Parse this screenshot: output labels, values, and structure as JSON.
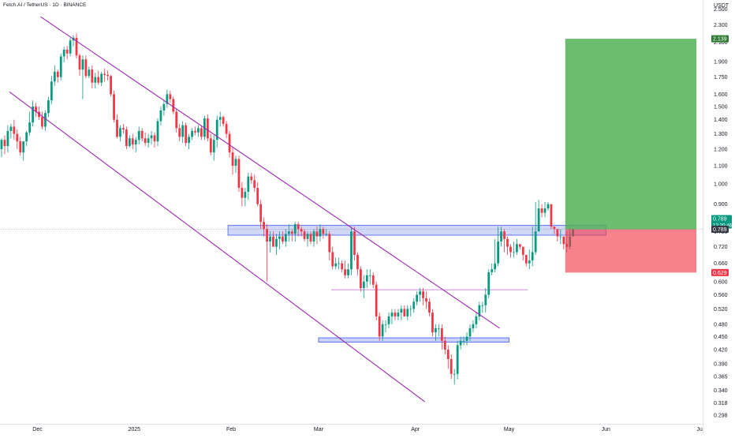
{
  "header": {
    "symbol_title": "Fetch.AI / TetherUS · 1D · BINANCE",
    "currency": "USDT"
  },
  "colors": {
    "up": "#089981",
    "down": "#f23645",
    "channel": "#9c27b0",
    "zone_fill": "#c5cdf5",
    "zone_stroke": "#3d5afe",
    "target_fill": "#4caf50",
    "stop_fill": "#f23645",
    "target_label_bg": "#2e7d32",
    "stop_label_bg": "#f23645",
    "price_label_bg": "#363a45"
  },
  "chart_data": {
    "type": "candlestick",
    "title": "Fetch.AI / TetherUS · 1D · BINANCE",
    "y_scale": "log",
    "ylim": [
      0.285,
      2.62
    ],
    "xlim": [
      "2024-11-19",
      "2025-07-02"
    ],
    "y_ticks": [
      "2.500",
      "2.300",
      "2.100",
      "1.900",
      "1.750",
      "1.600",
      "1.500",
      "1.400",
      "1.300",
      "1.200",
      "1.100",
      "1.000",
      "0.900",
      "0.780",
      "0.720",
      "0.660",
      "0.600",
      "0.560",
      "0.520",
      "0.480",
      "0.450",
      "0.420",
      "0.390",
      "0.365",
      "0.340",
      "0.318",
      "0.298"
    ],
    "x_ticks": [
      {
        "label": "Dec",
        "date": "2024-12-01"
      },
      {
        "label": "2025",
        "date": "2025-01-01"
      },
      {
        "label": "Feb",
        "date": "2025-02-01"
      },
      {
        "label": "Mar",
        "date": "2025-03-01"
      },
      {
        "label": "Apr",
        "date": "2025-04-01"
      },
      {
        "label": "May",
        "date": "2025-05-01"
      },
      {
        "label": "Jun",
        "date": "2025-06-01"
      },
      {
        "label": "Ju",
        "date": "2025-07-01"
      }
    ],
    "ohlc": {
      "start_date": "2024-11-19",
      "o": [
        1.2,
        1.26,
        1.22,
        1.32,
        1.35,
        1.3,
        1.25,
        1.18,
        1.25,
        1.31,
        1.38,
        1.5,
        1.46,
        1.42,
        1.35,
        1.45,
        1.55,
        1.71,
        1.8,
        1.75,
        1.95,
        2.02,
        1.98,
        2.12,
        2.15,
        1.96,
        1.82,
        1.92,
        1.76,
        1.82,
        1.7,
        1.75,
        1.7,
        1.78,
        1.77,
        1.76,
        1.6,
        1.4,
        1.28,
        1.34,
        1.33,
        1.22,
        1.27,
        1.23,
        1.26,
        1.32,
        1.27,
        1.24,
        1.27,
        1.29,
        1.25,
        1.39,
        1.47,
        1.52,
        1.6,
        1.56,
        1.46,
        1.34,
        1.28,
        1.36,
        1.24,
        1.28,
        1.32,
        1.31,
        1.34,
        1.28,
        1.41,
        1.27,
        1.18,
        1.26,
        1.4,
        1.42,
        1.37,
        1.3,
        1.18,
        1.1,
        1.14,
        0.98,
        0.93,
        0.96,
        1.04,
        1.02,
        0.98,
        0.9,
        0.82,
        0.79,
        0.74,
        0.76,
        0.72,
        0.75,
        0.76,
        0.74,
        0.77,
        0.78,
        0.77,
        0.81,
        0.79,
        0.78,
        0.75,
        0.77,
        0.74,
        0.78,
        0.76,
        0.79,
        0.77,
        0.77,
        0.7,
        0.65,
        0.66,
        0.66,
        0.64,
        0.62,
        0.64,
        0.78,
        0.69,
        0.64,
        0.58,
        0.6,
        0.62,
        0.62,
        0.59,
        0.5,
        0.45,
        0.48,
        0.48,
        0.5,
        0.51,
        0.5,
        0.51,
        0.52,
        0.5,
        0.52,
        0.52,
        0.54,
        0.56,
        0.57,
        0.55,
        0.54,
        0.51,
        0.46,
        0.47,
        0.47,
        0.44,
        0.42,
        0.4,
        0.37,
        0.37,
        0.43,
        0.44,
        0.44,
        0.45,
        0.47,
        0.48,
        0.5,
        0.53,
        0.53,
        0.56,
        0.63,
        0.64,
        0.66,
        0.74,
        0.78,
        0.75,
        0.72,
        0.7,
        0.7,
        0.73,
        0.72,
        0.69,
        0.66,
        0.67,
        0.7,
        0.78,
        0.88,
        0.86,
        0.88,
        0.9,
        0.8,
        0.79,
        0.76,
        0.76,
        0.73,
        0.72,
        0.76
      ],
      "h": [
        1.27,
        1.29,
        1.36,
        1.37,
        1.4,
        1.33,
        1.28,
        1.25,
        1.32,
        1.46,
        1.55,
        1.53,
        1.5,
        1.46,
        1.47,
        1.58,
        1.76,
        1.86,
        1.82,
        1.98,
        2.05,
        2.06,
        2.15,
        2.18,
        2.2,
        1.98,
        1.96,
        1.96,
        1.85,
        1.86,
        1.79,
        1.81,
        1.8,
        1.83,
        1.81,
        1.77,
        1.63,
        1.44,
        1.36,
        1.37,
        1.35,
        1.29,
        1.3,
        1.28,
        1.35,
        1.34,
        1.31,
        1.3,
        1.32,
        1.31,
        1.41,
        1.5,
        1.55,
        1.64,
        1.63,
        1.58,
        1.48,
        1.37,
        1.39,
        1.38,
        1.3,
        1.34,
        1.35,
        1.36,
        1.36,
        1.43,
        1.44,
        1.3,
        1.29,
        1.43,
        1.46,
        1.43,
        1.39,
        1.32,
        1.21,
        1.16,
        1.16,
        1.01,
        0.98,
        1.06,
        1.06,
        1.05,
        1.01,
        0.92,
        0.84,
        0.81,
        0.78,
        0.78,
        0.77,
        0.78,
        0.78,
        0.79,
        0.81,
        0.79,
        0.82,
        0.82,
        0.8,
        0.79,
        0.78,
        0.78,
        0.79,
        0.8,
        0.81,
        0.8,
        0.79,
        0.78,
        0.72,
        0.68,
        0.68,
        0.67,
        0.67,
        0.66,
        0.8,
        0.8,
        0.7,
        0.65,
        0.62,
        0.64,
        0.64,
        0.63,
        0.6,
        0.51,
        0.49,
        0.49,
        0.51,
        0.52,
        0.52,
        0.52,
        0.53,
        0.53,
        0.53,
        0.53,
        0.55,
        0.57,
        0.58,
        0.58,
        0.57,
        0.55,
        0.52,
        0.48,
        0.48,
        0.48,
        0.45,
        0.43,
        0.41,
        0.38,
        0.44,
        0.45,
        0.45,
        0.46,
        0.48,
        0.49,
        0.51,
        0.54,
        0.54,
        0.58,
        0.64,
        0.66,
        0.75,
        0.8,
        0.8,
        0.79,
        0.76,
        0.73,
        0.74,
        0.75,
        0.73,
        0.71,
        0.69,
        0.71,
        0.8,
        0.91,
        0.92,
        0.9,
        0.91,
        0.91,
        0.83,
        0.8,
        0.79,
        0.79,
        0.76,
        0.78,
        0.8
      ],
      "l": [
        1.15,
        1.17,
        1.18,
        1.27,
        1.26,
        1.2,
        1.16,
        1.13,
        1.22,
        1.29,
        1.35,
        1.42,
        1.4,
        1.33,
        1.32,
        1.42,
        1.52,
        1.67,
        1.7,
        1.72,
        1.89,
        1.92,
        1.95,
        2.06,
        1.93,
        1.76,
        1.56,
        1.74,
        1.74,
        1.65,
        1.65,
        1.68,
        1.67,
        1.71,
        1.72,
        1.58,
        1.38,
        1.27,
        1.25,
        1.3,
        1.2,
        1.21,
        1.2,
        1.18,
        1.23,
        1.25,
        1.22,
        1.21,
        1.23,
        1.21,
        1.22,
        1.36,
        1.43,
        1.49,
        1.53,
        1.44,
        1.31,
        1.25,
        1.24,
        1.22,
        1.2,
        1.26,
        1.29,
        1.28,
        1.26,
        1.26,
        1.25,
        1.16,
        1.13,
        1.21,
        1.35,
        1.35,
        1.27,
        1.15,
        1.05,
        1.06,
        0.96,
        0.89,
        0.89,
        0.92,
        1.0,
        0.96,
        0.89,
        0.79,
        0.76,
        0.6,
        0.7,
        0.72,
        0.69,
        0.71,
        0.73,
        0.72,
        0.74,
        0.74,
        0.74,
        0.76,
        0.76,
        0.74,
        0.72,
        0.73,
        0.72,
        0.73,
        0.74,
        0.75,
        0.76,
        0.67,
        0.64,
        0.64,
        0.64,
        0.63,
        0.61,
        0.61,
        0.62,
        0.67,
        0.62,
        0.57,
        0.55,
        0.58,
        0.59,
        0.58,
        0.49,
        0.44,
        0.44,
        0.46,
        0.47,
        0.48,
        0.49,
        0.49,
        0.49,
        0.5,
        0.49,
        0.5,
        0.51,
        0.53,
        0.54,
        0.53,
        0.52,
        0.5,
        0.45,
        0.44,
        0.45,
        0.42,
        0.41,
        0.38,
        0.36,
        0.35,
        0.36,
        0.42,
        0.43,
        0.43,
        0.44,
        0.46,
        0.47,
        0.49,
        0.51,
        0.51,
        0.55,
        0.62,
        0.63,
        0.65,
        0.72,
        0.7,
        0.69,
        0.68,
        0.68,
        0.69,
        0.71,
        0.67,
        0.65,
        0.64,
        0.65,
        0.69,
        0.78,
        0.84,
        0.84,
        0.87,
        0.79,
        0.77,
        0.74,
        0.73,
        0.71,
        0.7,
        0.71
      ],
      "c": [
        1.26,
        1.22,
        1.32,
        1.35,
        1.3,
        1.25,
        1.18,
        1.25,
        1.31,
        1.38,
        1.5,
        1.46,
        1.42,
        1.35,
        1.45,
        1.55,
        1.71,
        1.8,
        1.75,
        1.95,
        2.02,
        1.98,
        2.12,
        2.15,
        1.96,
        1.82,
        1.92,
        1.76,
        1.82,
        1.7,
        1.75,
        1.7,
        1.78,
        1.77,
        1.76,
        1.6,
        1.4,
        1.28,
        1.34,
        1.33,
        1.22,
        1.27,
        1.23,
        1.26,
        1.32,
        1.27,
        1.24,
        1.27,
        1.29,
        1.25,
        1.39,
        1.47,
        1.52,
        1.6,
        1.56,
        1.46,
        1.34,
        1.28,
        1.36,
        1.24,
        1.28,
        1.32,
        1.31,
        1.34,
        1.28,
        1.41,
        1.27,
        1.18,
        1.26,
        1.4,
        1.42,
        1.37,
        1.3,
        1.18,
        1.1,
        1.14,
        0.98,
        0.93,
        0.96,
        1.04,
        1.02,
        0.98,
        0.9,
        0.82,
        0.79,
        0.74,
        0.76,
        0.72,
        0.75,
        0.76,
        0.74,
        0.77,
        0.78,
        0.77,
        0.81,
        0.79,
        0.78,
        0.75,
        0.77,
        0.74,
        0.78,
        0.76,
        0.79,
        0.77,
        0.77,
        0.7,
        0.65,
        0.66,
        0.66,
        0.64,
        0.62,
        0.64,
        0.78,
        0.69,
        0.64,
        0.58,
        0.6,
        0.62,
        0.62,
        0.59,
        0.5,
        0.45,
        0.48,
        0.48,
        0.5,
        0.51,
        0.5,
        0.51,
        0.52,
        0.5,
        0.52,
        0.52,
        0.54,
        0.56,
        0.57,
        0.55,
        0.54,
        0.51,
        0.46,
        0.47,
        0.47,
        0.44,
        0.42,
        0.4,
        0.37,
        0.37,
        0.43,
        0.44,
        0.44,
        0.45,
        0.47,
        0.48,
        0.5,
        0.53,
        0.53,
        0.56,
        0.63,
        0.64,
        0.66,
        0.74,
        0.78,
        0.75,
        0.72,
        0.7,
        0.7,
        0.73,
        0.72,
        0.69,
        0.66,
        0.67,
        0.7,
        0.78,
        0.88,
        0.86,
        0.88,
        0.9,
        0.8,
        0.79,
        0.76,
        0.76,
        0.73,
        0.72,
        0.76,
        0.789
      ]
    },
    "channel_upper": [
      {
        "date": "2024-12-02",
        "value": 2.4
      },
      {
        "date": "2025-04-28",
        "value": 0.47
      }
    ],
    "channel_lower": [
      {
        "date": "2024-11-22",
        "value": 1.62
      },
      {
        "date": "2025-04-04",
        "value": 0.32
      }
    ],
    "resistance_zone": {
      "from": "2025-01-31",
      "to": "2025-06-01",
      "low": 0.765,
      "high": 0.805
    },
    "support_zone": {
      "from": "2025-03-01",
      "to": "2025-05-01",
      "low": 0.437,
      "high": 0.447
    },
    "mid_line": {
      "from": "2025-03-05",
      "to": "2025-05-07",
      "value": 0.575
    },
    "position": {
      "from": "2025-05-19",
      "to": "2025-06-30",
      "entry": 0.789,
      "target": 2.139,
      "stop": 0.629
    },
    "price_labels": {
      "target": "2.139",
      "last": "0.789",
      "countdown": "12:20:46",
      "entry": "0.789",
      "stop": "0.629"
    }
  }
}
